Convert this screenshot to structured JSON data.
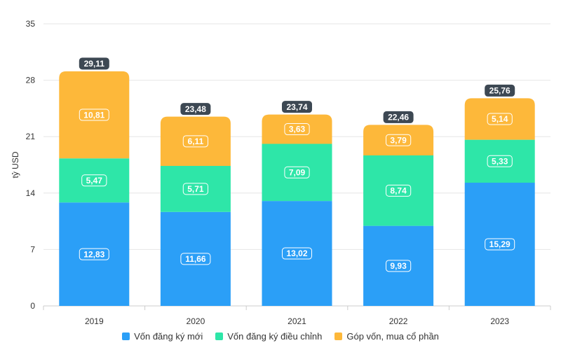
{
  "chart_data": {
    "type": "bar",
    "stacked": true,
    "categories": [
      "2019",
      "2020",
      "2021",
      "2022",
      "2023"
    ],
    "series": [
      {
        "name": "Vốn đăng ký mới",
        "color": "#2b9ff7",
        "values": [
          12.83,
          11.66,
          13.02,
          9.93,
          15.29
        ],
        "labels": [
          "12,83",
          "11,66",
          "13,02",
          "9,93",
          "15,29"
        ]
      },
      {
        "name": "Vốn đăng ký điều chỉnh",
        "color": "#2ee6a8",
        "values": [
          5.47,
          5.71,
          7.09,
          8.74,
          5.33
        ],
        "labels": [
          "5,47",
          "5,71",
          "7,09",
          "8,74",
          "5,33"
        ]
      },
      {
        "name": "Góp vốn, mua cổ phần",
        "color": "#fdb83a",
        "values": [
          10.81,
          6.11,
          3.63,
          3.79,
          5.14
        ],
        "labels": [
          "10,81",
          "6,11",
          "3,63",
          "3,79",
          "5,14"
        ]
      }
    ],
    "totals": [
      29.11,
      23.48,
      23.74,
      22.46,
      25.76
    ],
    "total_labels": [
      "29,11",
      "23,48",
      "23,74",
      "22,46",
      "25,76"
    ],
    "ylabel": "tỷ USD",
    "xlabel": "",
    "ylim": [
      0,
      35
    ],
    "yticks": [
      0,
      7,
      14,
      21,
      28,
      35
    ],
    "ytick_labels": [
      "0",
      "7",
      "14",
      "21",
      "28",
      "35"
    ],
    "grid": true,
    "legend_position": "bottom",
    "colors": {
      "total_badge": "#3d4853",
      "grid": "#e6e6e6",
      "axis": "#cccccc"
    }
  }
}
